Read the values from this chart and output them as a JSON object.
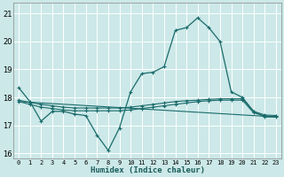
{
  "xlabel": "Humidex (Indice chaleur)",
  "bg_color": "#cce8e8",
  "grid_color": "#ffffff",
  "line_color": "#1a6b6b",
  "xlim": [
    -0.5,
    23.5
  ],
  "ylim": [
    15.8,
    21.4
  ],
  "yticks": [
    16,
    17,
    18,
    19,
    20,
    21
  ],
  "xticks": [
    0,
    1,
    2,
    3,
    4,
    5,
    6,
    7,
    8,
    9,
    10,
    11,
    12,
    13,
    14,
    15,
    16,
    17,
    18,
    19,
    20,
    21,
    22,
    23
  ],
  "series1_x": [
    0,
    1,
    2,
    3,
    4,
    5,
    6,
    7,
    8,
    9,
    10,
    11,
    12,
    13,
    14,
    15,
    16,
    17,
    18,
    19,
    20,
    21,
    22,
    23
  ],
  "series1_y": [
    18.35,
    17.85,
    17.15,
    17.5,
    17.5,
    17.4,
    17.35,
    16.65,
    16.1,
    16.9,
    18.2,
    18.85,
    18.9,
    19.1,
    20.4,
    20.5,
    20.85,
    20.5,
    20.0,
    18.2,
    18.0,
    17.5,
    17.3,
    17.3
  ],
  "series2_x": [
    0,
    1,
    2,
    3,
    4,
    5,
    6,
    7,
    8,
    9,
    10,
    11,
    12,
    13,
    14,
    15,
    16,
    17,
    18,
    19,
    20,
    21,
    22,
    23
  ],
  "series2_y": [
    17.85,
    17.75,
    17.65,
    17.6,
    17.55,
    17.52,
    17.52,
    17.52,
    17.52,
    17.52,
    17.55,
    17.6,
    17.65,
    17.7,
    17.75,
    17.8,
    17.85,
    17.88,
    17.9,
    17.9,
    17.9,
    17.45,
    17.33,
    17.32
  ],
  "series3_x": [
    0,
    1,
    2,
    3,
    4,
    5,
    6,
    7,
    8,
    9,
    10,
    11,
    12,
    13,
    14,
    15,
    16,
    17,
    18,
    19,
    20,
    21,
    22,
    23
  ],
  "series3_y": [
    17.9,
    17.82,
    17.75,
    17.7,
    17.65,
    17.62,
    17.62,
    17.62,
    17.62,
    17.62,
    17.65,
    17.7,
    17.75,
    17.8,
    17.85,
    17.88,
    17.9,
    17.93,
    17.95,
    17.95,
    17.95,
    17.5,
    17.37,
    17.35
  ],
  "series4_x": [
    0,
    23
  ],
  "series4_y": [
    17.85,
    17.3
  ]
}
